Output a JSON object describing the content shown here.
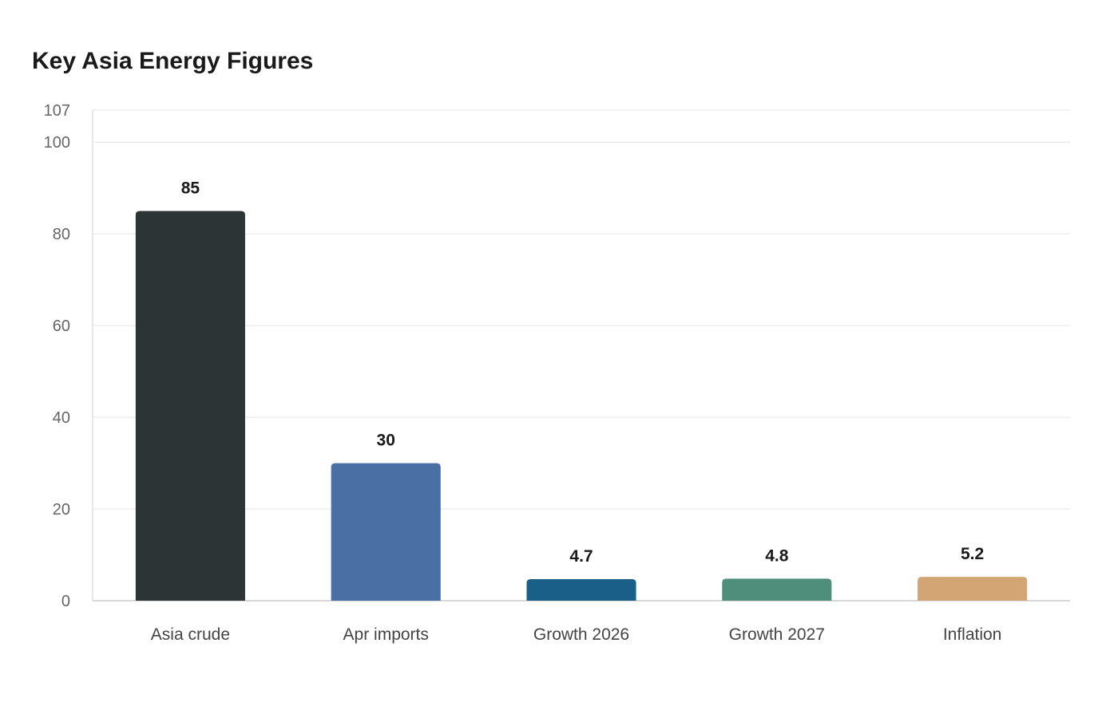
{
  "chart_data": {
    "type": "bar",
    "title": "Key Asia Energy Figures",
    "categories": [
      "Asia crude",
      "Apr imports",
      "Growth 2026",
      "Growth 2027",
      "Inflation"
    ],
    "values": [
      85,
      30,
      4.7,
      4.8,
      5.2
    ],
    "value_labels": [
      "85",
      "30",
      "4.7",
      "4.8",
      "5.2"
    ],
    "colors": [
      "#2d3436",
      "#4a6fa5",
      "#1a5f87",
      "#4e8e7b",
      "#d4a574"
    ],
    "ylim": [
      0,
      107
    ],
    "yticks": [
      0,
      20,
      40,
      60,
      80,
      100,
      107
    ],
    "xlabel": "",
    "ylabel": "",
    "grid": true,
    "legend": "none"
  }
}
